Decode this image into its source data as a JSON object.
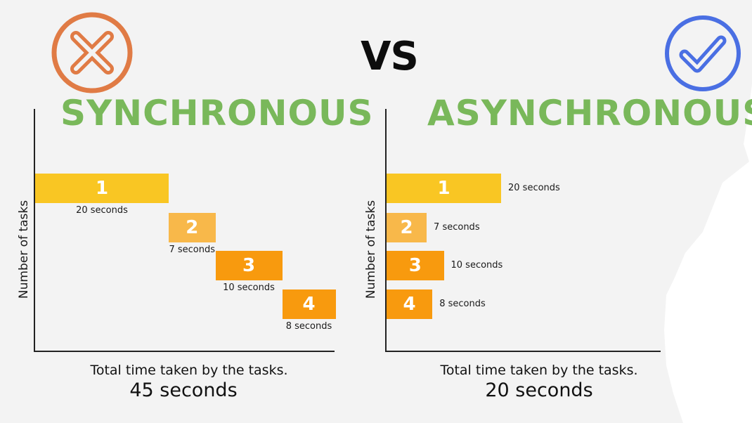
{
  "header": {
    "vs": "VS",
    "left_icon": "x-circle-icon",
    "right_icon": "check-circle-icon",
    "left_icon_color": "#e07b45",
    "right_icon_color": "#4a6fe3",
    "title_color": "#79b85a"
  },
  "chart_data": [
    {
      "type": "bar",
      "layout": "gantt-sequential",
      "title": "SYNCHRONOUS",
      "ylabel": "Number of tasks",
      "xlabel": "Total time taken by the tasks.",
      "total_label": "45 seconds",
      "total_seconds": 45,
      "tasks": [
        {
          "label": "1",
          "start": 0,
          "duration": 20,
          "duration_label": "20 seconds",
          "color": "#f9c623"
        },
        {
          "label": "2",
          "start": 20,
          "duration": 7,
          "duration_label": "7 seconds",
          "color": "#f8b84a"
        },
        {
          "label": "3",
          "start": 27,
          "duration": 10,
          "duration_label": "10 seconds",
          "color": "#f89a0e"
        },
        {
          "label": "4",
          "start": 37,
          "duration": 8,
          "duration_label": "8 seconds",
          "color": "#f89a0e"
        }
      ]
    },
    {
      "type": "bar",
      "layout": "gantt-parallel",
      "title": "ASYNCHRONOUS",
      "ylabel": "Number of tasks",
      "xlabel": "Total time taken by the tasks.",
      "total_label": "20 seconds",
      "total_seconds": 20,
      "tasks": [
        {
          "label": "1",
          "start": 0,
          "duration": 20,
          "duration_label": "20 seconds",
          "color": "#f9c623"
        },
        {
          "label": "2",
          "start": 0,
          "duration": 7,
          "duration_label": "7 seconds",
          "color": "#f8b84a"
        },
        {
          "label": "3",
          "start": 0,
          "duration": 10,
          "duration_label": "10 seconds",
          "color": "#f89a0e"
        },
        {
          "label": "4",
          "start": 0,
          "duration": 8,
          "duration_label": "8 seconds",
          "color": "#f89a0e"
        }
      ]
    }
  ]
}
